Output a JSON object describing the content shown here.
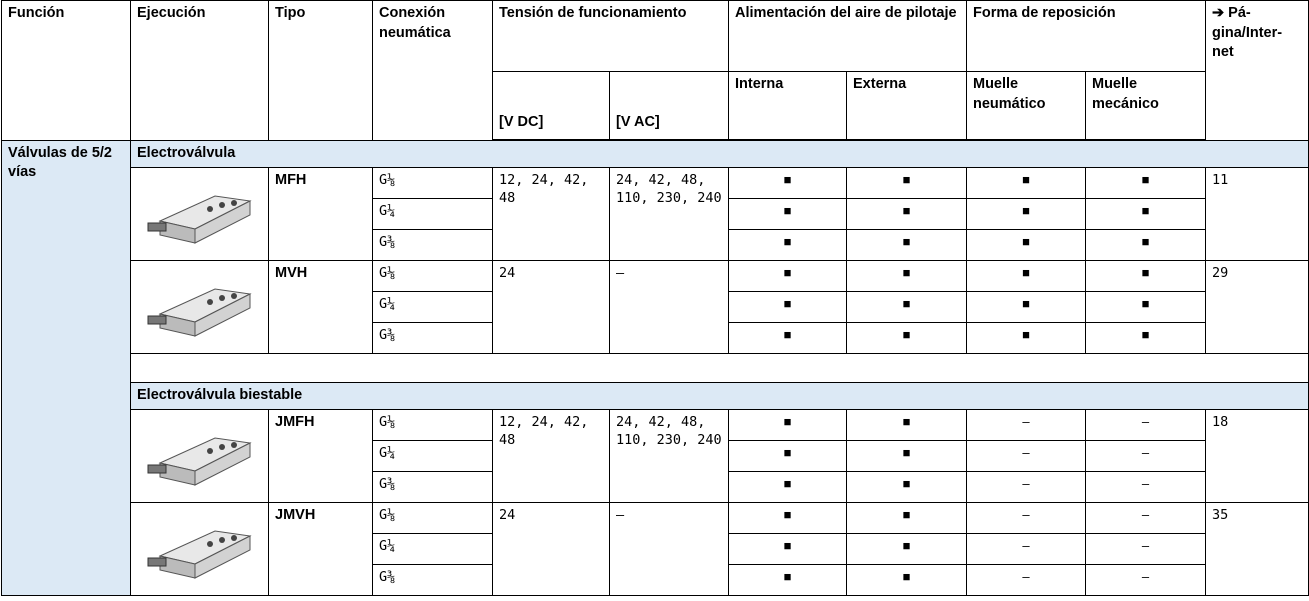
{
  "header": {
    "funcion": "Función",
    "ejecucion": "Ejecución",
    "tipo": "Tipo",
    "conexion": "Conexión neumática",
    "tension": "Tensión de funcionamiento",
    "v_dc": "[V DC]",
    "v_ac": "[V AC]",
    "alimentacion": "Alimentación del aire de pilotaje",
    "interna": "Interna",
    "externa": "Externa",
    "reposicion": "Forma de reposición",
    "muelle_neumatico": "Muelle neumático",
    "muelle_mecanico": "Muelle mecánico",
    "pagina": "➔ Pá-gina/Inter-net"
  },
  "table": {
    "funcion": "Válvulas de 5/2 vías",
    "sections": [
      {
        "title": "Electroválvula",
        "groups": [
          {
            "tipo": "MFH",
            "conexiones": [
              "G⅛",
              "G¼",
              "G⅜"
            ],
            "v_dc": "12, 24, 42, 48",
            "v_ac": "24, 42, 48, 110, 230, 240",
            "pagina": "11",
            "rows": [
              [
                "■",
                "■",
                "■",
                "■"
              ],
              [
                "■",
                "■",
                "■",
                "■"
              ],
              [
                "■",
                "■",
                "■",
                "■"
              ]
            ]
          },
          {
            "tipo": "MVH",
            "conexiones": [
              "G⅛",
              "G¼",
              "G⅜"
            ],
            "v_dc": "24",
            "v_ac": "–",
            "pagina": "29",
            "rows": [
              [
                "■",
                "■",
                "■",
                "■"
              ],
              [
                "■",
                "■",
                "■",
                "■"
              ],
              [
                "■",
                "■",
                "■",
                "■"
              ]
            ]
          }
        ]
      },
      {
        "title": "Electroválvula biestable",
        "groups": [
          {
            "tipo": "JMFH",
            "conexiones": [
              "G⅛",
              "G¼",
              "G⅜"
            ],
            "v_dc": "12, 24, 42, 48",
            "v_ac": "24, 42, 48, 110, 230, 240",
            "pagina": "18",
            "rows": [
              [
                "■",
                "■",
                "–",
                "–"
              ],
              [
                "■",
                "■",
                "–",
                "–"
              ],
              [
                "■",
                "■",
                "–",
                "–"
              ]
            ]
          },
          {
            "tipo": "JMVH",
            "conexiones": [
              "G⅛",
              "G¼",
              "G⅜"
            ],
            "v_dc": "24",
            "v_ac": "–",
            "pagina": "35",
            "rows": [
              [
                "■",
                "■",
                "–",
                "–"
              ],
              [
                "■",
                "■",
                "–",
                "–"
              ],
              [
                "■",
                "■",
                "–",
                "–"
              ]
            ]
          }
        ]
      }
    ]
  }
}
